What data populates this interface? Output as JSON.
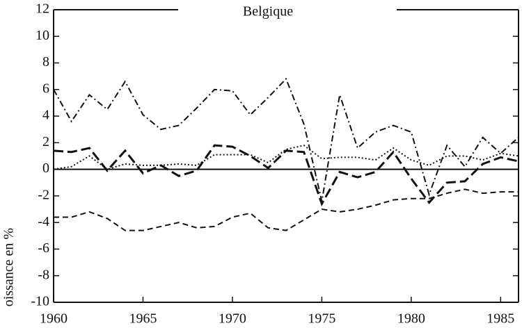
{
  "chart_data": {
    "type": "line",
    "title": "Belgique",
    "y_label": "oissance en %",
    "x": [
      1960,
      1961,
      1962,
      1963,
      1964,
      1965,
      1966,
      1967,
      1968,
      1969,
      1970,
      1971,
      1972,
      1973,
      1974,
      1975,
      1976,
      1977,
      1978,
      1979,
      1980,
      1981,
      1982,
      1983,
      1984,
      1985,
      1986
    ],
    "series": [
      {
        "color": "#111111",
        "style": "dashdot",
        "values": [
          6.0,
          3.6,
          5.6,
          4.5,
          6.6,
          4.1,
          3.0,
          3.3,
          4.6,
          6.0,
          5.9,
          4.1,
          5.4,
          6.8,
          3.4,
          -2.4,
          5.6,
          1.6,
          2.8,
          3.3,
          2.8,
          -1.9,
          1.8,
          0.2,
          2.4,
          1.2,
          2.4
        ]
      },
      {
        "color": "#111111",
        "style": "longdash",
        "values": [
          1.4,
          1.3,
          1.6,
          -0.1,
          1.4,
          -0.3,
          0.3,
          -0.5,
          -0.1,
          1.8,
          1.7,
          1.0,
          0.1,
          1.4,
          1.3,
          -2.6,
          -0.2,
          -0.6,
          -0.2,
          1.3,
          -0.7,
          -2.5,
          -1.0,
          -0.9,
          0.4,
          0.9,
          0.6
        ]
      },
      {
        "color": "#111111",
        "style": "dotted",
        "values": [
          0.0,
          0.2,
          1.0,
          0.0,
          0.4,
          0.3,
          0.3,
          0.4,
          0.3,
          1.1,
          1.1,
          1.1,
          0.5,
          1.5,
          1.8,
          0.8,
          0.9,
          0.9,
          0.7,
          1.6,
          0.7,
          0.3,
          1.0,
          1.0,
          0.7,
          1.2,
          1.0
        ]
      },
      {
        "color": "#111111",
        "style": "dashed",
        "values": [
          -3.6,
          -3.6,
          -3.2,
          -3.7,
          -4.6,
          -4.6,
          -4.3,
          -4.0,
          -4.4,
          -4.3,
          -3.6,
          -3.3,
          -4.4,
          -4.6,
          -3.8,
          -3.0,
          -3.2,
          -3.0,
          -2.7,
          -2.3,
          -2.2,
          -2.2,
          -1.8,
          -1.5,
          -1.8,
          -1.7,
          -1.7
        ]
      }
    ],
    "xlim": [
      1960,
      1986
    ],
    "xticks": [
      1960,
      1965,
      1970,
      1975,
      1980,
      1985
    ],
    "ylim": [
      -10,
      12
    ],
    "yticks": [
      -10,
      -8,
      -6,
      -4,
      -2,
      0,
      2,
      4,
      6,
      8,
      10,
      12
    ]
  }
}
